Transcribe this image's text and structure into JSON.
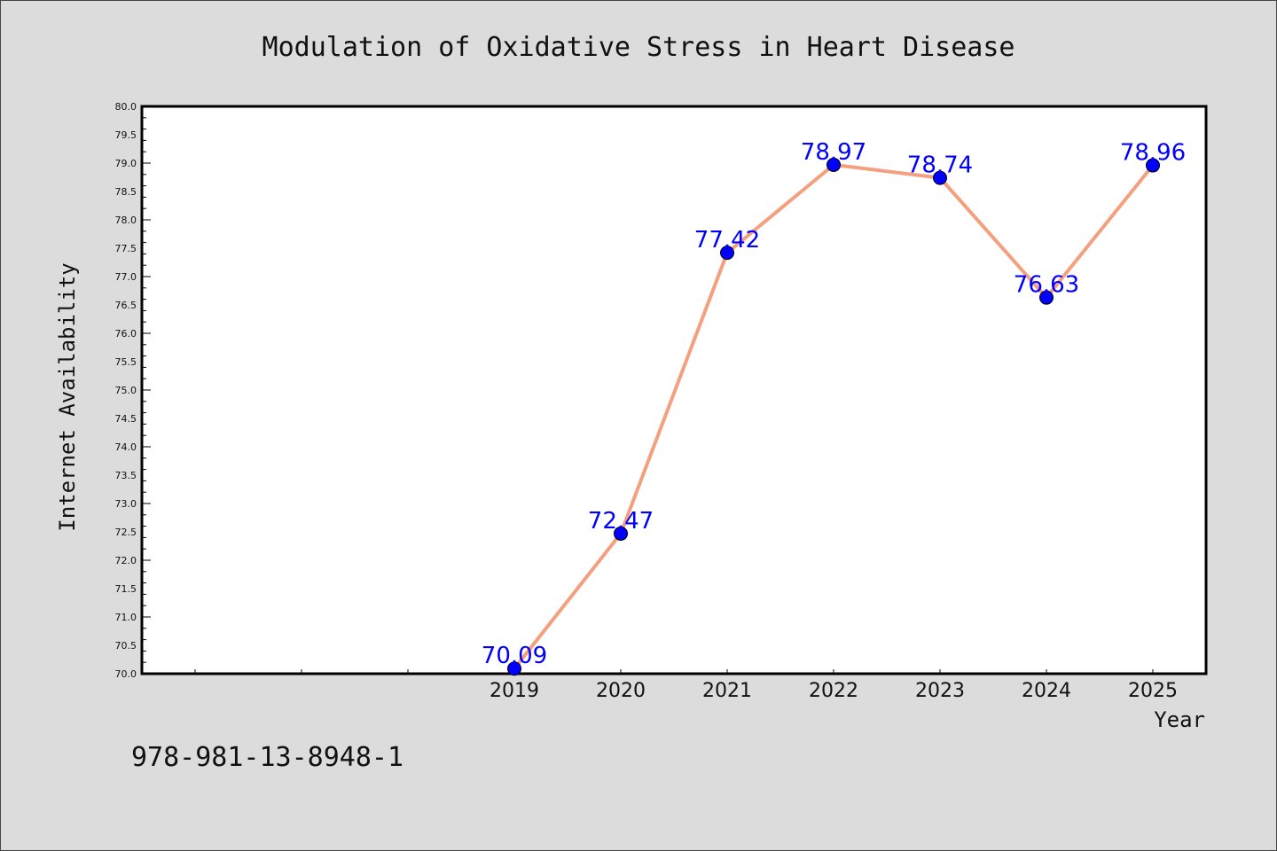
{
  "chart_data": {
    "type": "line",
    "title": "Modulation of Oxidative Stress in Heart Disease",
    "xlabel": "Year",
    "ylabel": "Internet Availability",
    "categories": [
      "2019",
      "2020",
      "2021",
      "2022",
      "2023",
      "2024",
      "2025"
    ],
    "series": [
      {
        "values": [
          70.09,
          72.47,
          77.42,
          78.97,
          78.74,
          76.63,
          78.96
        ],
        "labels": [
          "70.09",
          "72.47",
          "77.42",
          "78.97",
          "78.74",
          "76.63",
          "78.96"
        ]
      }
    ],
    "ylim": [
      70.0,
      80.0
    ],
    "yticks": [
      "70.0",
      "70.5",
      "71.0",
      "71.5",
      "72.0",
      "72.5",
      "73.0",
      "73.5",
      "74.0",
      "74.5",
      "75.0",
      "75.5",
      "76.0",
      "76.5",
      "77.0",
      "77.5",
      "78.0",
      "78.5",
      "79.0",
      "79.5",
      "80.0"
    ],
    "x_slots_before_first_category": 3,
    "grid": false,
    "legend": "none"
  },
  "colors": {
    "line": "#f4a07e",
    "marker": "#0000ff",
    "data_label": "#0000ff",
    "background": "#dcdcdc",
    "plot_area": "#ffffff"
  },
  "footer": {
    "isbn": "978-981-13-8948-1"
  }
}
